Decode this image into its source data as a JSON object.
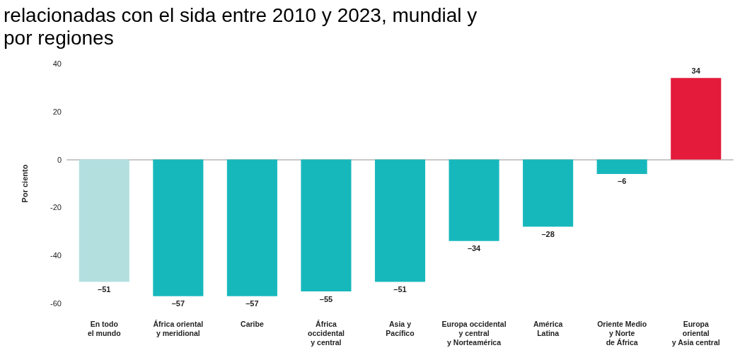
{
  "chart_data": {
    "type": "bar",
    "title": "relacionadas con el sida entre 2010 y 2023, mundial y\npor regiones",
    "ylabel": "Por ciento",
    "categories": [
      "En todo\nel mundo",
      "África oriental\ny meridional",
      "Caribe",
      "África\noccidental\ny central",
      "Asia y\nPacífico",
      "Europa occidental\ny central\ny Norteamérica",
      "América\nLatina",
      "Oriente Medio\ny Norte\nde África",
      "Europa\noriental\ny Asia central"
    ],
    "values": [
      -51,
      -57,
      -57,
      -55,
      -51,
      -34,
      -28,
      -6,
      34
    ],
    "colors": [
      "#b3dfdf",
      "#17b8bc",
      "#17b8bc",
      "#17b8bc",
      "#17b8bc",
      "#17b8bc",
      "#17b8bc",
      "#17b8bc",
      "#e41b3a"
    ],
    "value_labels": [
      "–51",
      "–57",
      "–57",
      "–55",
      "–51",
      "–34",
      "–28",
      "–6",
      "34"
    ],
    "ylim": [
      -60,
      40
    ],
    "yticks": [
      -60,
      -40,
      -20,
      0,
      20,
      40
    ]
  }
}
